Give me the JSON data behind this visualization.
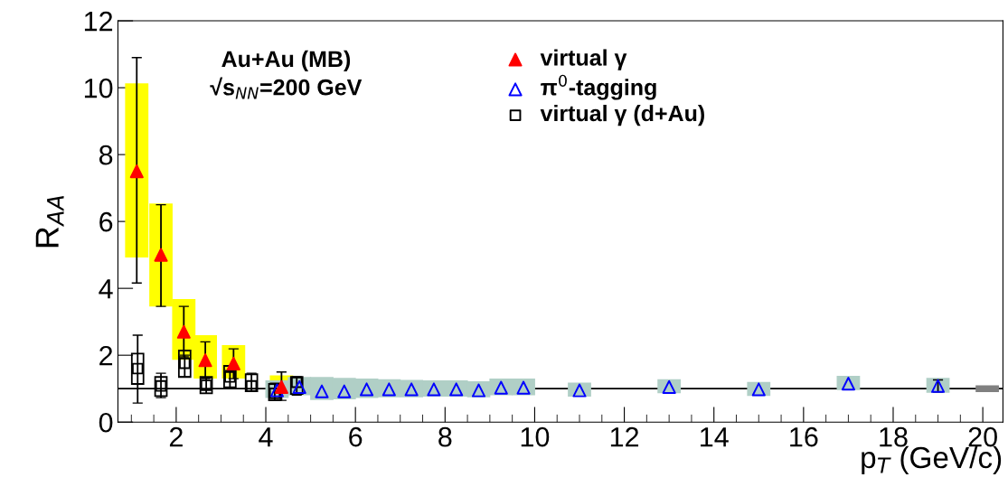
{
  "chart_data": {
    "type": "scatter",
    "xlabel": "p$_{T}$ (GeV/c)",
    "ylabel": "R$_{AA}$",
    "xlim": [
      0.7,
      20.45
    ],
    "xticks": [
      2,
      4,
      6,
      8,
      10,
      12,
      14,
      16,
      18,
      20
    ],
    "ylim": [
      0,
      12
    ],
    "yticks": [
      0,
      2,
      4,
      6,
      8,
      10,
      12
    ],
    "grid": false,
    "legend": "top",
    "annotations": [
      "Au+Au (MB)",
      "√s$_{NN}$=200 GeV"
    ],
    "ref_lines": [
      {
        "axis": "y",
        "value": 1,
        "color": "#000000",
        "line_style": "solid"
      }
    ],
    "series": [
      {
        "type": "bar",
        "color": "#ffff00",
        "x": [
          1.12,
          1.66,
          2.17,
          2.65,
          3.28,
          4.35
        ],
        "base": [
          4.92,
          3.46,
          1.86,
          1.3,
          1.3,
          0.86
        ],
        "values": [
          5.21,
          3.08,
          1.82,
          1.3,
          1.0,
          0.54
        ]
      },
      {
        "type": "bar",
        "color": "#b0cfc6",
        "x": [
          4.25,
          4.75,
          5.25,
          5.75,
          6.25,
          6.75,
          7.25,
          7.75,
          8.25,
          8.75,
          9.25,
          9.75,
          11,
          13,
          15,
          17,
          19
        ],
        "base": [
          0.72,
          0.8,
          0.66,
          0.68,
          0.72,
          0.74,
          0.74,
          0.76,
          0.76,
          0.74,
          0.8,
          0.8,
          0.76,
          0.86,
          0.78,
          0.96,
          0.88
        ],
        "values": [
          0.53,
          0.55,
          0.69,
          0.64,
          0.58,
          0.54,
          0.52,
          0.49,
          0.49,
          0.48,
          0.5,
          0.5,
          0.42,
          0.42,
          0.42,
          0.42,
          0.44
        ]
      },
      {
        "type": "bar",
        "color": "#808080",
        "x": [
          20.1
        ],
        "base": [
          0.9
        ],
        "values": [
          0.2
        ]
      },
      {
        "type": "bar",
        "color": "#000000",
        "x": [
          1.14,
          1.66,
          2.19,
          2.67,
          3.2,
          3.68,
          4.2,
          4.69
        ],
        "base": [
          1.14,
          0.78,
          1.35,
          0.86,
          1.03,
          0.92,
          0.65,
          0.84
        ],
        "values": [
          0.91,
          0.57,
          0.79,
          0.49,
          0.65,
          0.51,
          0.49,
          0.51
        ]
      },
      {
        "name": "virtual γ (d+Au)",
        "color": "#000000",
        "marker": "square",
        "x": [
          1.14,
          1.66,
          2.19,
          2.67,
          3.2,
          3.68,
          4.2,
          4.69
        ],
        "values": [
          1.6,
          1.08,
          1.76,
          1.1,
          1.35,
          1.08,
          0.86,
          1.19
        ],
        "errors": [
          [
            0.57,
            2.6
          ],
          [
            0.73,
            1.46
          ],
          [
            1.35,
            2.0
          ],
          [
            0.86,
            1.32
          ],
          [
            1.05,
            1.54
          ],
          [
            0.92,
            1.46
          ],
          [
            0.65,
            1.16
          ],
          [
            0.81,
            1.35
          ]
        ]
      },
      {
        "name": "π$^{0}$-tagging",
        "color": "#0000ff",
        "marker": "triangle",
        "x": [
          4.25,
          4.75,
          5.25,
          5.75,
          6.25,
          6.75,
          7.25,
          7.75,
          8.25,
          8.75,
          9.25,
          9.75,
          11,
          13,
          15,
          17,
          19
        ],
        "values": [
          0.95,
          1.05,
          0.92,
          0.92,
          0.98,
          0.98,
          0.98,
          0.98,
          0.98,
          0.95,
          1.03,
          1.03,
          0.95,
          1.05,
          0.98,
          1.15,
          1.08
        ],
        "errors": [
          null,
          null,
          null,
          null,
          null,
          null,
          null,
          null,
          null,
          null,
          null,
          null,
          null,
          null,
          null,
          null,
          [
            0.9,
            1.26
          ]
        ]
      },
      {
        "name": "virtual γ",
        "color": "#ff0000",
        "marker": "triangle",
        "x": [
          1.12,
          1.66,
          2.17,
          2.65,
          3.28,
          4.35
        ],
        "values": [
          7.5,
          5.0,
          2.7,
          1.85,
          1.75,
          1.05
        ],
        "errors": [
          [
            4.16,
            10.9
          ],
          [
            3.46,
            6.5
          ],
          [
            1.95,
            3.46
          ],
          [
            1.3,
            2.4
          ],
          [
            1.3,
            2.19
          ],
          [
            0.65,
            1.5
          ]
        ]
      }
    ]
  }
}
